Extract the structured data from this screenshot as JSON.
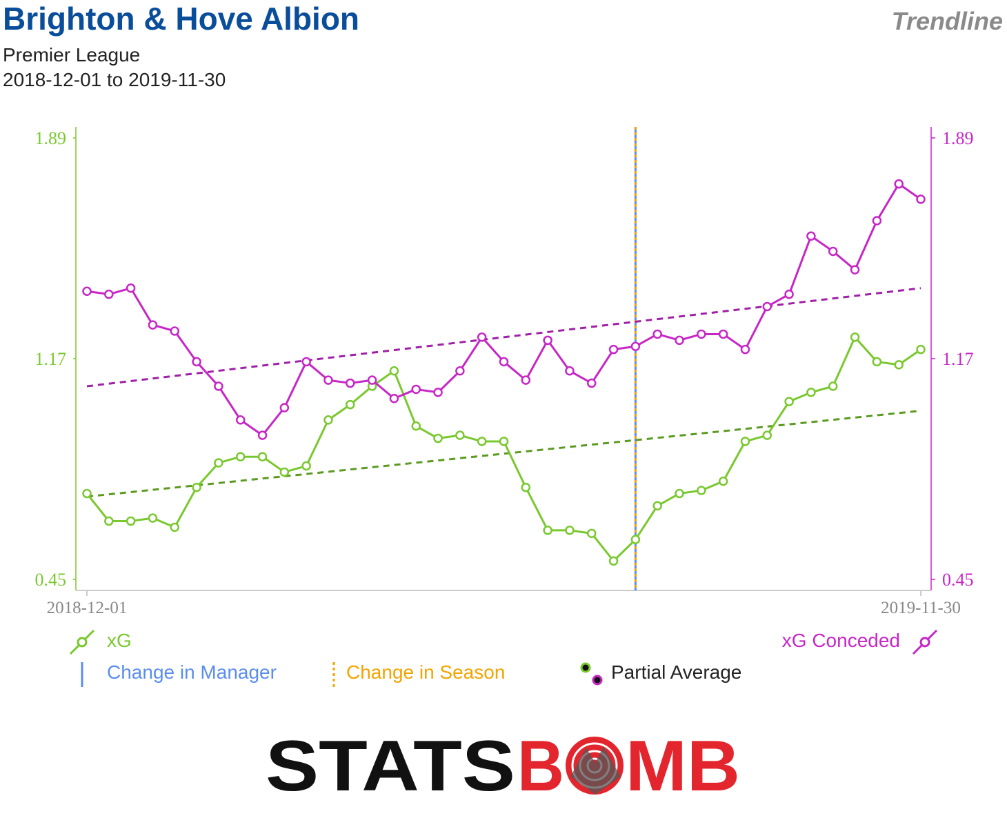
{
  "header": {
    "team": "Brighton & Hove Albion",
    "badge": "Trendline",
    "competition": "Premier League",
    "date_range": "2018-12-01 to 2019-11-30"
  },
  "colors": {
    "team": "#0a4d9a",
    "xg": "#79c82e",
    "xg_conceded": "#c726c7",
    "xg_trend": "#5a9a1e",
    "xg_conceded_trend": "#a01fa8",
    "manager": "#5b8def",
    "season": "#f5a300",
    "axis": "#cccccc",
    "logo_black": "#111111",
    "logo_red": "#e3262d"
  },
  "legend": {
    "xg": "xG",
    "xg_conceded": "xG Conceded",
    "manager": "Change in Manager",
    "season": "Change in Season",
    "partial": "Partial Average"
  },
  "logo": {
    "part1": "STATS",
    "part2": "B",
    "part3": "MB",
    "icon": "target-bomb-icon"
  },
  "chart_data": {
    "type": "line",
    "x_start_label": "2018-12-01",
    "x_end_label": "2019-11-30",
    "ylim": [
      0.45,
      1.89
    ],
    "y_ticks": [
      0.45,
      1.17,
      1.89
    ],
    "y_tick_labels": [
      "0.45",
      "1.17",
      "1.89"
    ],
    "season_change_index": 25,
    "series": [
      {
        "key": "xg",
        "name": "xG",
        "axis": "left",
        "values": [
          0.73,
          0.64,
          0.64,
          0.65,
          0.62,
          0.75,
          0.83,
          0.85,
          0.85,
          0.8,
          0.82,
          0.97,
          1.02,
          1.08,
          1.13,
          0.95,
          0.91,
          0.92,
          0.9,
          0.9,
          0.75,
          0.61,
          0.61,
          0.6,
          0.51,
          0.58,
          0.69,
          0.73,
          0.74,
          0.77,
          0.9,
          0.92,
          1.03,
          1.06,
          1.08,
          1.24,
          1.16,
          1.15,
          1.2
        ],
        "trend": [
          0.72,
          1.0
        ]
      },
      {
        "key": "xg_conceded",
        "name": "xG Conceded",
        "axis": "right",
        "values": [
          1.39,
          1.38,
          1.4,
          1.28,
          1.26,
          1.16,
          1.08,
          0.97,
          0.92,
          1.01,
          1.16,
          1.1,
          1.09,
          1.1,
          1.04,
          1.07,
          1.06,
          1.13,
          1.24,
          1.16,
          1.1,
          1.23,
          1.13,
          1.09,
          1.2,
          1.21,
          1.25,
          1.23,
          1.25,
          1.25,
          1.2,
          1.34,
          1.38,
          1.57,
          1.52,
          1.46,
          1.62,
          1.74,
          1.69
        ],
        "trend": [
          1.08,
          1.4
        ]
      }
    ]
  }
}
